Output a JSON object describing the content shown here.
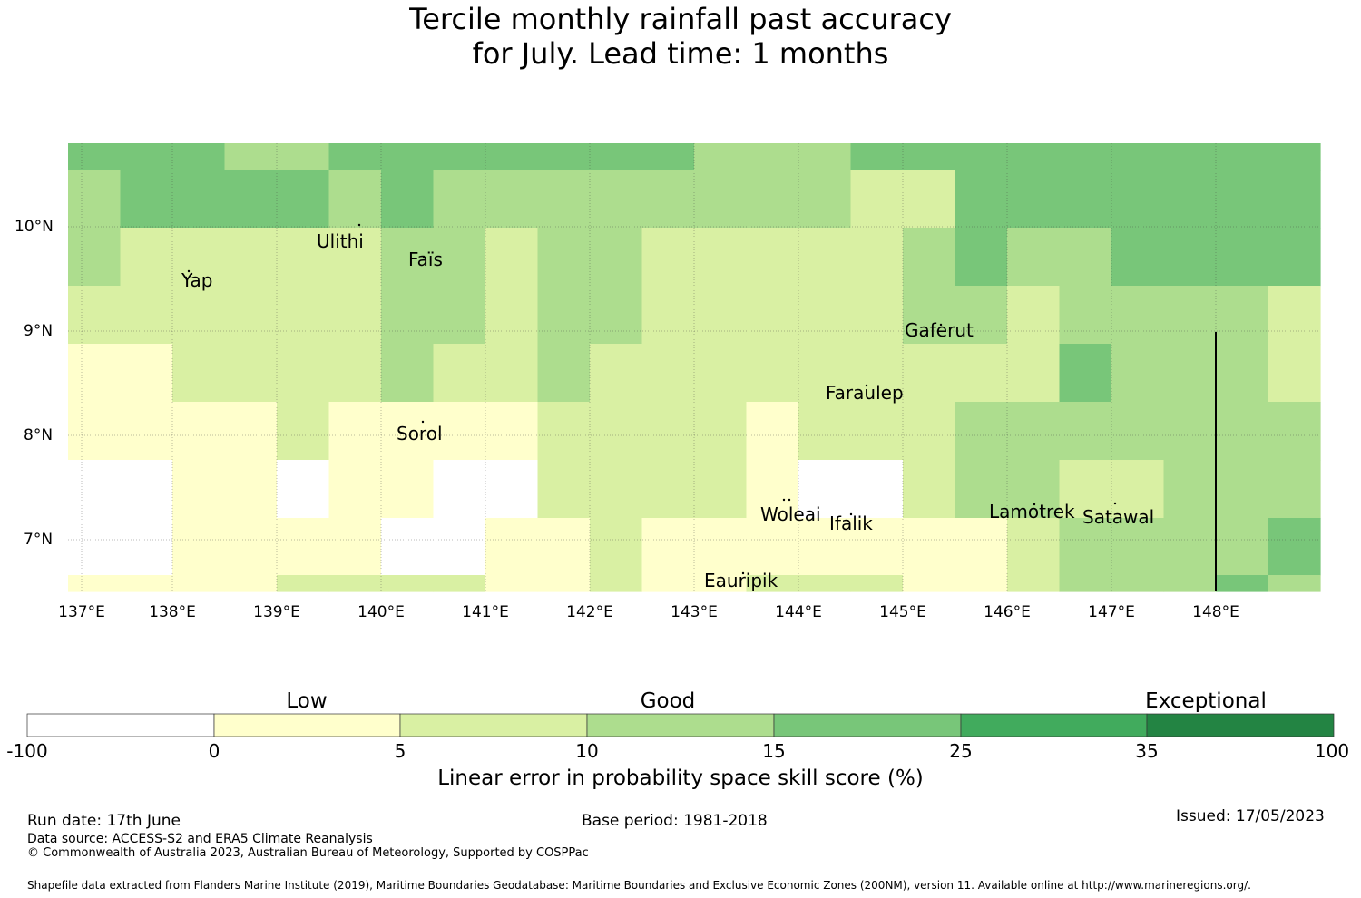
{
  "title": {
    "line1": "Tercile monthly rainfall past accuracy",
    "line2": "for July. Lead time: 1 months"
  },
  "axes": {
    "x_labels": [
      "137°E",
      "138°E",
      "139°E",
      "140°E",
      "141°E",
      "142°E",
      "143°E",
      "144°E",
      "145°E",
      "146°E",
      "147°E",
      "148°E"
    ],
    "y_labels": [
      "10°N",
      "9°N",
      "8°N",
      "7°N"
    ]
  },
  "places": [
    "Ulithi",
    "Yap",
    "Faïs",
    "Gaferut",
    "Faraulep",
    "Sorol",
    "Woleai",
    "Ifalik",
    "Lamotrek",
    "Satawal",
    "Eauripik"
  ],
  "colorbar": {
    "categories": [
      "Low",
      "Good",
      "Exceptional"
    ],
    "ticks": [
      "-100",
      "0",
      "5",
      "10",
      "15",
      "25",
      "35",
      "100"
    ],
    "colors": [
      "#ffffff",
      "#ffffcc",
      "#d9f0a3",
      "#addd8e",
      "#78c679",
      "#41ab5d",
      "#238443"
    ],
    "label": "Linear error in probability space skill score (%)"
  },
  "footer": {
    "run_date": "Run date: 17th June",
    "base_period": "Base period: 1981-2018",
    "issued": "Issued: 17/05/2023",
    "data_source": "Data source: ACCESS-S2 and ERA5 Climate Reanalysis",
    "copyright": "© Commonwealth of Australia 2023, Australian Bureau of Meteorology, Supported by COSPPac",
    "shapefile": "Shapefile data extracted from Flanders Marine Institute (2019), Maritime Boundaries Geodatabase: Maritime Boundaries and Exclusive Economic Zones (200NM), version 11. Available online at http://www.marineregions.org/."
  },
  "grid_levels": [
    [
      4,
      4,
      4,
      3,
      3,
      4,
      4,
      4,
      4,
      4,
      4,
      4,
      3,
      3,
      3,
      4,
      4,
      4,
      4,
      4,
      4,
      4,
      4,
      4
    ],
    [
      3,
      4,
      4,
      4,
      4,
      3,
      4,
      3,
      3,
      3,
      3,
      3,
      3,
      3,
      3,
      2,
      2,
      4,
      4,
      4,
      4,
      4,
      4,
      4
    ],
    [
      3,
      2,
      2,
      2,
      2,
      2,
      3,
      3,
      2,
      3,
      3,
      2,
      2,
      2,
      2,
      2,
      3,
      4,
      3,
      3,
      4,
      4,
      4,
      4
    ],
    [
      2,
      2,
      2,
      2,
      2,
      2,
      3,
      3,
      2,
      3,
      3,
      2,
      2,
      2,
      2,
      2,
      3,
      3,
      2,
      3,
      3,
      3,
      3,
      2
    ],
    [
      1,
      1,
      2,
      2,
      2,
      2,
      3,
      2,
      2,
      3,
      2,
      2,
      2,
      2,
      2,
      2,
      2,
      2,
      2,
      4,
      3,
      3,
      3,
      2
    ],
    [
      1,
      1,
      1,
      1,
      2,
      1,
      1,
      1,
      1,
      2,
      2,
      2,
      2,
      1,
      2,
      2,
      2,
      3,
      3,
      3,
      3,
      3,
      3,
      3
    ],
    [
      0,
      0,
      1,
      1,
      0,
      1,
      1,
      0,
      0,
      2,
      2,
      2,
      2,
      1,
      0,
      0,
      2,
      3,
      3,
      2,
      2,
      3,
      3,
      3
    ],
    [
      0,
      0,
      1,
      1,
      1,
      1,
      0,
      0,
      1,
      1,
      2,
      1,
      1,
      1,
      1,
      1,
      1,
      1,
      2,
      3,
      3,
      3,
      3,
      4
    ],
    [
      1,
      1,
      1,
      1,
      2,
      2,
      2,
      2,
      1,
      1,
      2,
      1,
      1,
      2,
      2,
      2,
      1,
      1,
      2,
      3,
      3,
      3,
      4,
      3
    ]
  ]
}
